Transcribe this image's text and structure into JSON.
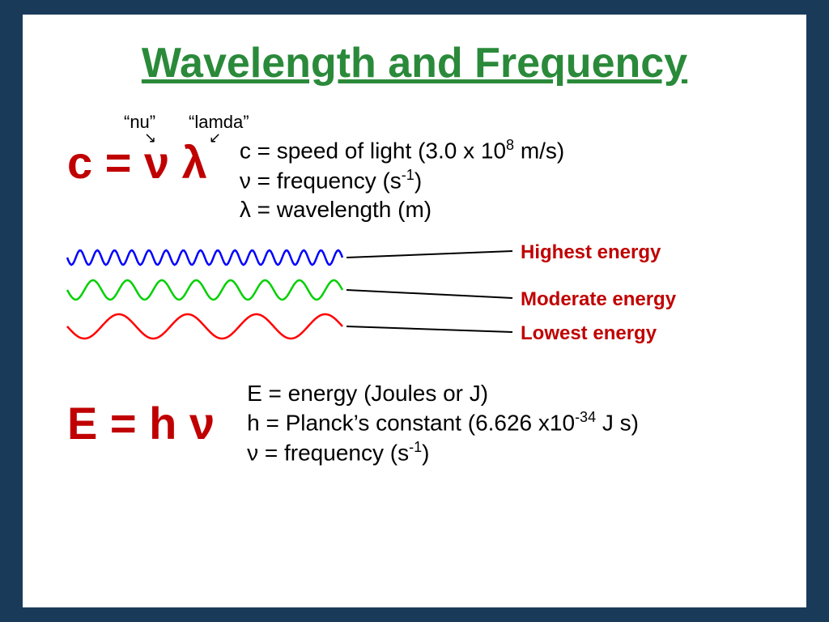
{
  "title": {
    "text": "Wavelength and Frequency",
    "color": "#2a8a3a"
  },
  "annotations": {
    "nu": "“nu”",
    "lambda": "“lamda”"
  },
  "formula1": {
    "html": "c = ν λ",
    "color": "#c00000"
  },
  "defs1": {
    "line1_pre": "c = speed of light (3.0 x 10",
    "line1_sup": "8",
    "line1_post": " m/s)",
    "line2_pre": "ν = frequency (s",
    "line2_sup": "-1",
    "line2_post": ")",
    "line3": "λ = wavelength (m)"
  },
  "waves": {
    "colors": {
      "high": "#0000ff",
      "mid": "#00d000",
      "low": "#ff0000"
    },
    "labels": {
      "high": "Highest energy",
      "mid": "Moderate energy",
      "low": "Lowest energy"
    },
    "label_color": "#c00000",
    "pointer_color": "#000000"
  },
  "formula2": {
    "html": "E = h ν",
    "color": "#c00000"
  },
  "defs2": {
    "line1": "E = energy (Joules or J)",
    "line2_pre": "h = Planck’s constant (6.626 x10",
    "line2_sup": "-34",
    "line2_post": " J s)",
    "line3_pre": "ν = frequency (s",
    "line3_sup": "-1",
    "line3_post": ")"
  }
}
